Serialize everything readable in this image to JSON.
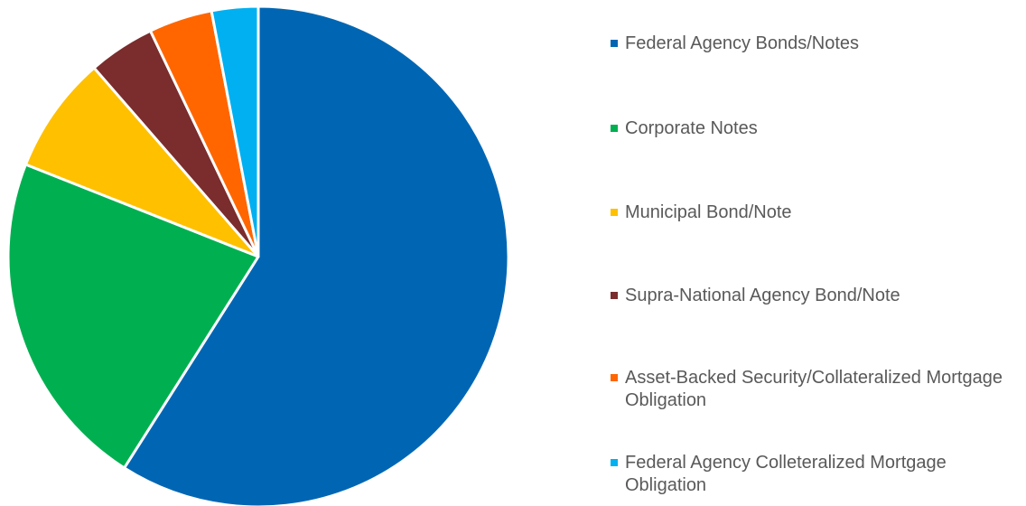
{
  "chart_data": {
    "type": "pie",
    "categories": [
      "Federal Agency Bonds/Notes",
      "Corporate Notes",
      "Municipal Bond/Note",
      "Supra-National Agency Bond/Note",
      "Asset-Backed Security/Collateralized Mortgage Obligation",
      "Federal Agency Colleteralized Mortgage Obligation"
    ],
    "values": [
      59,
      22,
      7.6,
      4.3,
      4.1,
      3
    ],
    "colors": [
      "#0066b3",
      "#00b050",
      "#ffc000",
      "#7b2c2c",
      "#ff6600",
      "#00b0f0"
    ],
    "legend": "right"
  }
}
